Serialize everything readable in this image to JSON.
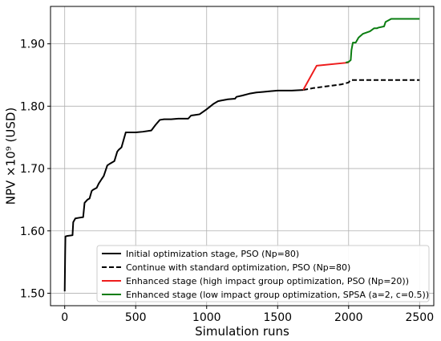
{
  "chart_data": {
    "type": "line",
    "xlabel": "Simulation runs",
    "ylabel": "NPV ×10⁹ (USD)",
    "xlim": [
      -100,
      2600
    ],
    "ylim": [
      1.48,
      1.96
    ],
    "xticks": [
      0,
      500,
      1000,
      1500,
      2000,
      2500
    ],
    "xtick_labels": [
      "0",
      "500",
      "1000",
      "1500",
      "2000",
      "2500"
    ],
    "yticks": [
      1.5,
      1.6,
      1.7,
      1.8,
      1.9
    ],
    "ytick_labels": [
      "1.50",
      "1.60",
      "1.70",
      "1.80",
      "1.90"
    ],
    "grid": true,
    "legend_position": "lower-right",
    "series": [
      {
        "name": "Initial optimization stage, PSO (Np=80)",
        "color": "#000000",
        "dash": "solid",
        "x": [
          0,
          3,
          5,
          20,
          55,
          60,
          75,
          100,
          130,
          140,
          160,
          175,
          190,
          200,
          225,
          240,
          260,
          275,
          300,
          320,
          350,
          370,
          380,
          400,
          430,
          450,
          470,
          500,
          550,
          610,
          640,
          670,
          700,
          750,
          800,
          870,
          890,
          920,
          950,
          1000,
          1050,
          1080,
          1100,
          1150,
          1200,
          1210,
          1250,
          1300,
          1350,
          1400,
          1450,
          1500,
          1600,
          1680
        ],
        "y": [
          1.503,
          1.56,
          1.591,
          1.592,
          1.593,
          1.614,
          1.62,
          1.621,
          1.622,
          1.645,
          1.65,
          1.652,
          1.664,
          1.666,
          1.669,
          1.676,
          1.683,
          1.688,
          1.705,
          1.708,
          1.712,
          1.727,
          1.73,
          1.734,
          1.758,
          1.758,
          1.758,
          1.758,
          1.759,
          1.761,
          1.77,
          1.778,
          1.779,
          1.779,
          1.78,
          1.78,
          1.785,
          1.786,
          1.787,
          1.795,
          1.804,
          1.808,
          1.809,
          1.811,
          1.812,
          1.815,
          1.817,
          1.82,
          1.822,
          1.823,
          1.824,
          1.825,
          1.825,
          1.826
        ]
      },
      {
        "name": "Continue with standard optimization, PSO (Np=80)",
        "color": "#000000",
        "dash": "dashed",
        "x": [
          1680,
          1750,
          1850,
          1950,
          2000,
          2010,
          2020,
          2100,
          2300,
          2500
        ],
        "y": [
          1.826,
          1.829,
          1.832,
          1.835,
          1.838,
          1.841,
          1.842,
          1.842,
          1.842,
          1.842
        ]
      },
      {
        "name": "Enhanced stage (high impact group optimization, PSO (Np=20))",
        "color": "#ee1c1c",
        "dash": "solid",
        "x": [
          1680,
          1775,
          2000
        ],
        "y": [
          1.826,
          1.865,
          1.87
        ]
      },
      {
        "name": "Enhanced stage (low impact group optimization, SPSA (a=2, c=0.5))",
        "color": "#0a7d10",
        "dash": "solid",
        "x": [
          1980,
          2000,
          2015,
          2020,
          2030,
          2050,
          2070,
          2100,
          2150,
          2180,
          2200,
          2210,
          2250,
          2260,
          2300,
          2500
        ],
        "y": [
          1.87,
          1.871,
          1.874,
          1.89,
          1.902,
          1.902,
          1.91,
          1.916,
          1.92,
          1.925,
          1.925,
          1.926,
          1.928,
          1.935,
          1.94,
          1.94
        ]
      }
    ]
  }
}
